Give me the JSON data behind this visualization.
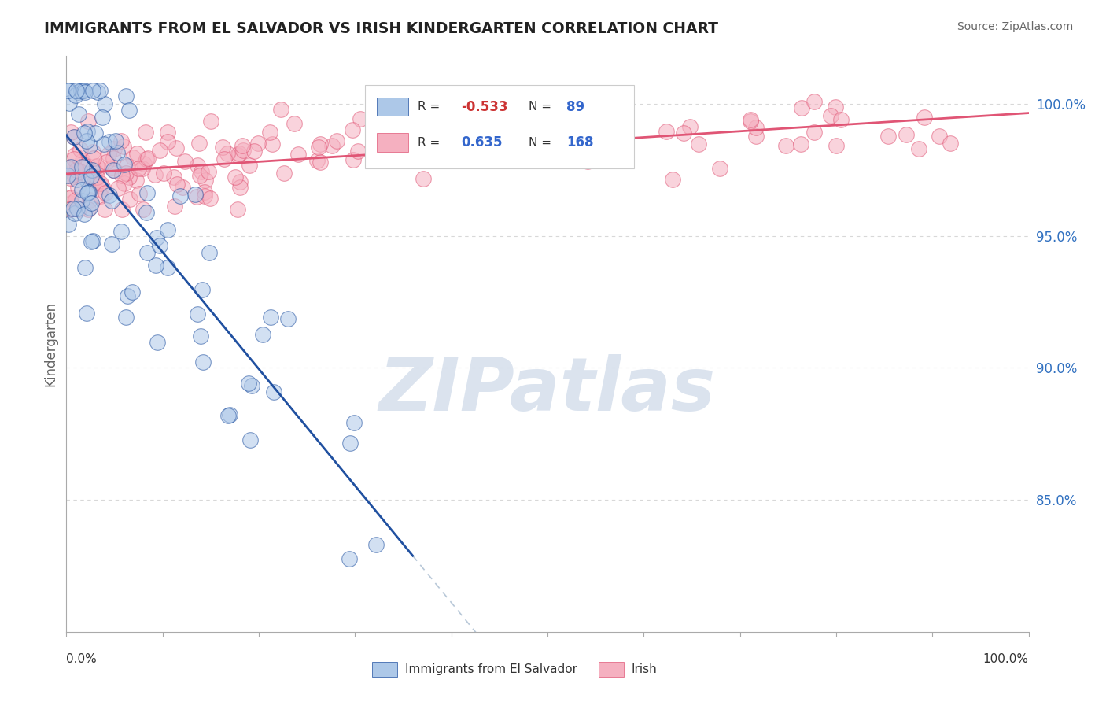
{
  "title": "IMMIGRANTS FROM EL SALVADOR VS IRISH KINDERGARTEN CORRELATION CHART",
  "source": "Source: ZipAtlas.com",
  "ylabel": "Kindergarten",
  "blue_R": -0.533,
  "blue_N": 89,
  "pink_R": 0.635,
  "pink_N": 168,
  "blue_color": "#adc8e8",
  "pink_color": "#f5b0c0",
  "blue_line_color": "#2050a0",
  "pink_line_color": "#e05575",
  "dashed_line_color": "#b8c8d8",
  "watermark_text": "ZIPatlas",
  "watermark_color": "#ccd8e8",
  "background_color": "#ffffff",
  "grid_color": "#d8d8d8",
  "legend_blue_label": "Immigrants from El Salvador",
  "legend_pink_label": "Irish",
  "xmin": 0.0,
  "xmax": 1.0,
  "ymin": 0.8,
  "ymax": 1.018,
  "right_yticks": [
    0.85,
    0.9,
    0.95,
    1.0
  ],
  "right_yticklabels": [
    "85.0%",
    "90.0%",
    "95.0%",
    "100.0%"
  ]
}
